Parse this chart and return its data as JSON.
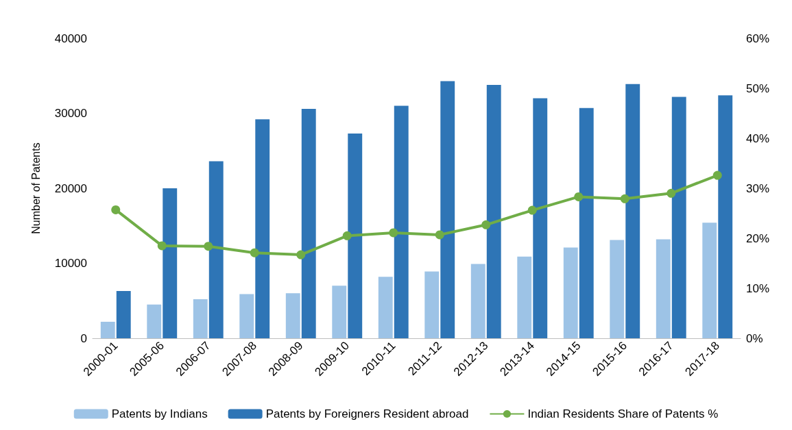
{
  "chart_data": {
    "type": "bar",
    "ylabel": "Number of Patents",
    "categories": [
      "2000-01",
      "2005-06",
      "2006-07",
      "2007-08",
      "2008-09",
      "2009-10",
      "2010-11",
      "2011-12",
      "2012-13",
      "2013-14",
      "2014-15",
      "2015-16",
      "2016-17",
      "2017-18"
    ],
    "series": [
      {
        "name": "Patents by Indians",
        "color": "#9dc3e6",
        "values": [
          2200,
          4500,
          5200,
          5900,
          6000,
          7000,
          8200,
          8900,
          9900,
          10900,
          12100,
          13100,
          13200,
          15400
        ]
      },
      {
        "name": "Patents by Foreigners Resident abroad",
        "color": "#2e75b6",
        "values": [
          6300,
          20000,
          23600,
          29200,
          30600,
          27300,
          31000,
          34300,
          33800,
          32000,
          30700,
          33900,
          32200,
          32400
        ]
      },
      {
        "name": "Indian Residents Share of Patents %",
        "type": "line",
        "axis": "y2",
        "color": "#70ad47",
        "marker": "circle",
        "values": [
          25.7,
          18.5,
          18.4,
          17.1,
          16.7,
          20.5,
          21.1,
          20.7,
          22.7,
          25.6,
          28.3,
          27.9,
          29.0,
          32.6
        ]
      }
    ],
    "ylim": [
      0,
      40000
    ],
    "yticks": [
      0,
      10000,
      20000,
      30000,
      40000
    ],
    "y2lim": [
      0,
      60
    ],
    "y2ticks": [
      {
        "value": 0,
        "label": "0%"
      },
      {
        "value": 10,
        "label": "10%"
      },
      {
        "value": 20,
        "label": "20%"
      },
      {
        "value": 30,
        "label": "30%"
      },
      {
        "value": 40,
        "label": "40%"
      },
      {
        "value": 50,
        "label": "50%"
      },
      {
        "value": 60,
        "label": "60%"
      }
    ],
    "grid": false,
    "legend": "bottom"
  }
}
